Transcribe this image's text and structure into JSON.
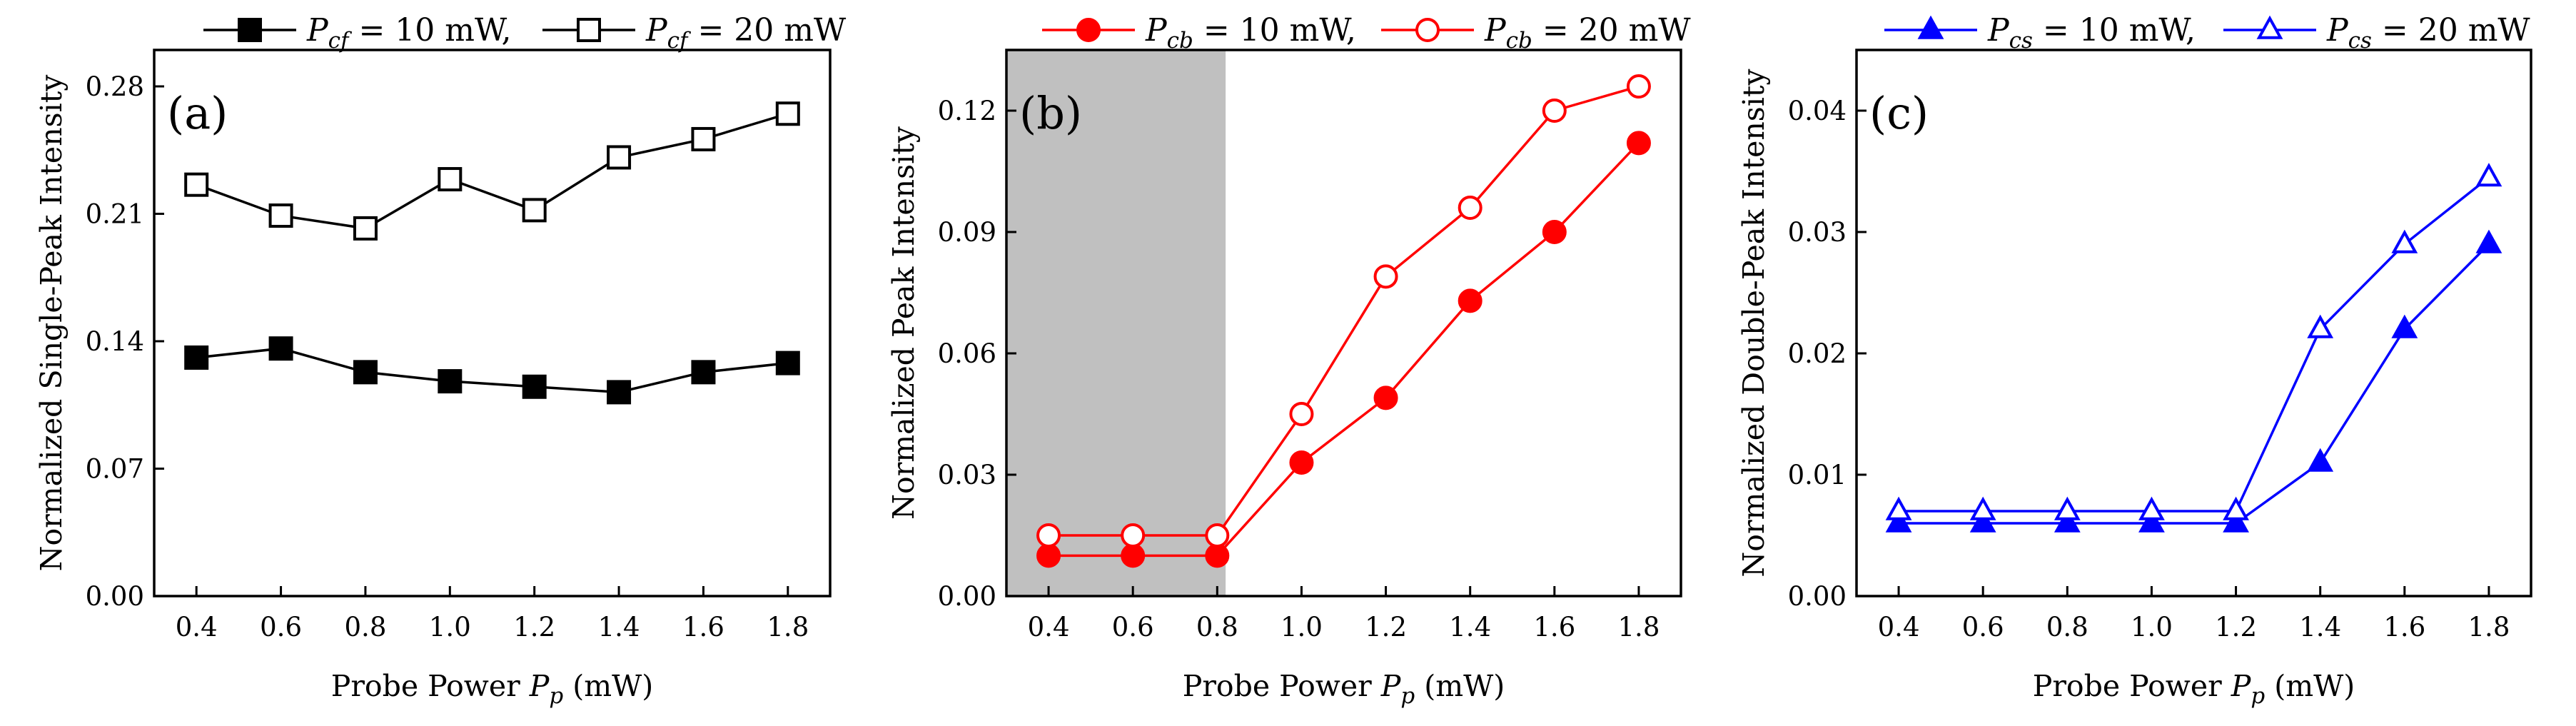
{
  "chart_data": [
    {
      "type": "line",
      "panel": "(a)",
      "xlabel": "Probe Power",
      "xsym": "P",
      "xsub": "p",
      "xunit": "(mW)",
      "ylabel": "Normalized Single-Peak Intensity",
      "xlim": [
        0.3,
        1.9
      ],
      "ylim": [
        0.0,
        0.3
      ],
      "xticks": [
        "0.4",
        "0.6",
        "0.8",
        "1.0",
        "1.2",
        "1.4",
        "1.6",
        "1.8"
      ],
      "yticks": [
        "0.00",
        "0.07",
        "0.14",
        "0.21",
        "0.28"
      ],
      "color": "#000000",
      "marker": "square",
      "shaded": null,
      "x": [
        0.4,
        0.6,
        0.8,
        1.0,
        1.2,
        1.4,
        1.6,
        1.8
      ],
      "series": [
        {
          "name": "P_cf = 10 mW,",
          "sym": "P",
          "sub": "cf",
          "text": "= 10 mW,",
          "filled": true,
          "values": [
            0.131,
            0.136,
            0.123,
            0.118,
            0.115,
            0.112,
            0.123,
            0.128
          ]
        },
        {
          "name": "P_cf = 20 mW",
          "sym": "P",
          "sub": "cf",
          "text": "= 20 mW",
          "filled": false,
          "values": [
            0.226,
            0.209,
            0.202,
            0.229,
            0.212,
            0.241,
            0.251,
            0.265
          ]
        }
      ]
    },
    {
      "type": "line",
      "panel": "(b)",
      "xlabel": "Probe Power",
      "xsym": "P",
      "xsub": "p",
      "xunit": "(mW)",
      "ylabel": "Normalized Peak Intensity",
      "xlim": [
        0.3,
        1.9
      ],
      "ylim": [
        0.0,
        0.135
      ],
      "xticks": [
        "0.4",
        "0.6",
        "0.8",
        "1.0",
        "1.2",
        "1.4",
        "1.6",
        "1.8"
      ],
      "yticks": [
        "0.00",
        "0.03",
        "0.06",
        "0.09",
        "0.12"
      ],
      "color": "#ff0000",
      "marker": "circle",
      "shaded": [
        0.3,
        0.82
      ],
      "x": [
        0.4,
        0.6,
        0.8,
        1.0,
        1.2,
        1.4,
        1.6,
        1.8
      ],
      "series": [
        {
          "name": "P_cb = 10 mW,",
          "sym": "P",
          "sub": "cb",
          "text": "= 10 mW,",
          "filled": true,
          "values": [
            0.01,
            0.01,
            0.01,
            0.033,
            0.049,
            0.073,
            0.09,
            0.112
          ]
        },
        {
          "name": "P_cb = 20 mW",
          "sym": "P",
          "sub": "cb",
          "text": "= 20 mW",
          "filled": false,
          "values": [
            0.015,
            0.015,
            0.015,
            0.045,
            0.079,
            0.096,
            0.12,
            0.126
          ]
        }
      ]
    },
    {
      "type": "line",
      "panel": "(c)",
      "xlabel": "Probe Power",
      "xsym": "P",
      "xsub": "p",
      "xunit": "(mW)",
      "ylabel": "Normalized Double-Peak Intensity",
      "xlim": [
        0.3,
        1.9
      ],
      "ylim": [
        0.0,
        0.045
      ],
      "xticks": [
        "0.4",
        "0.6",
        "0.8",
        "1.0",
        "1.2",
        "1.4",
        "1.6",
        "1.8"
      ],
      "yticks": [
        "0.00",
        "0.01",
        "0.02",
        "0.03",
        "0.04"
      ],
      "color": "#0000ff",
      "marker": "triangle",
      "shaded": null,
      "x": [
        0.4,
        0.6,
        0.8,
        1.0,
        1.2,
        1.4,
        1.6,
        1.8
      ],
      "series": [
        {
          "name": "P_cs = 10 mW,",
          "sym": "P",
          "sub": "cs",
          "text": "= 10 mW,",
          "filled": true,
          "values": [
            0.006,
            0.006,
            0.006,
            0.006,
            0.006,
            0.011,
            0.022,
            0.029
          ]
        },
        {
          "name": "P_cs = 20 mW",
          "sym": "P",
          "sub": "cs",
          "text": "= 20 mW",
          "filled": false,
          "values": [
            0.007,
            0.007,
            0.007,
            0.007,
            0.007,
            0.022,
            0.029,
            0.0345
          ]
        }
      ]
    }
  ]
}
